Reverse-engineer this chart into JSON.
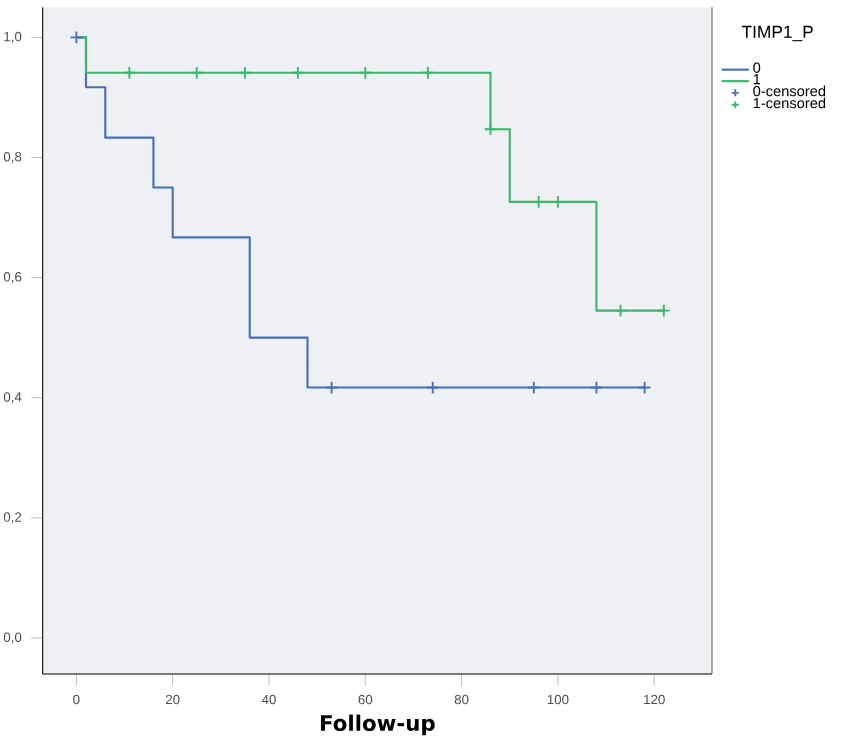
{
  "chart_data": {
    "type": "step",
    "xlabel": "Follow-up",
    "legend_title": "TIMP1_P",
    "legend": "right",
    "xlim": [
      -7,
      132
    ],
    "ylim": [
      -0.06,
      1.05
    ],
    "xticks": [
      0,
      20,
      40,
      60,
      80,
      100,
      120
    ],
    "yticks": [
      {
        "value": 0,
        "label": "0,0"
      },
      {
        "value": 0.2,
        "label": "0,2"
      },
      {
        "value": 0.4,
        "label": "0,4"
      },
      {
        "value": 0.6,
        "label": "0,6"
      },
      {
        "value": 0.8,
        "label": "0,8"
      },
      {
        "value": 1.0,
        "label": "1,0"
      }
    ],
    "series": [
      {
        "name": "0",
        "color": "#4a6fb5",
        "x": [
          0,
          2,
          6,
          16,
          20,
          36,
          48,
          118
        ],
        "values": [
          1,
          0.917,
          0.833,
          0.75,
          0.667,
          0.5,
          0.417,
          0.417
        ]
      },
      {
        "name": "1",
        "color": "#3fb56c",
        "x": [
          0,
          2,
          86,
          90,
          108,
          122
        ],
        "values": [
          1,
          0.941,
          0.847,
          0.726,
          0.545,
          0.545
        ]
      },
      {
        "name": "0-censored",
        "type": "scatter",
        "marker": "cross",
        "color": "#4a6fb5",
        "x": [
          0,
          53,
          74,
          95,
          108,
          118
        ],
        "values": [
          1,
          0.417,
          0.417,
          0.417,
          0.417,
          0.417
        ]
      },
      {
        "name": "1-censored",
        "type": "scatter",
        "marker": "cross",
        "color": "#3fb56c",
        "x": [
          11,
          25,
          35,
          46,
          60,
          73,
          86,
          96,
          100,
          113,
          122
        ],
        "values": [
          0.941,
          0.941,
          0.941,
          0.941,
          0.941,
          0.941,
          0.847,
          0.726,
          0.726,
          0.545,
          0.545
        ]
      }
    ]
  }
}
